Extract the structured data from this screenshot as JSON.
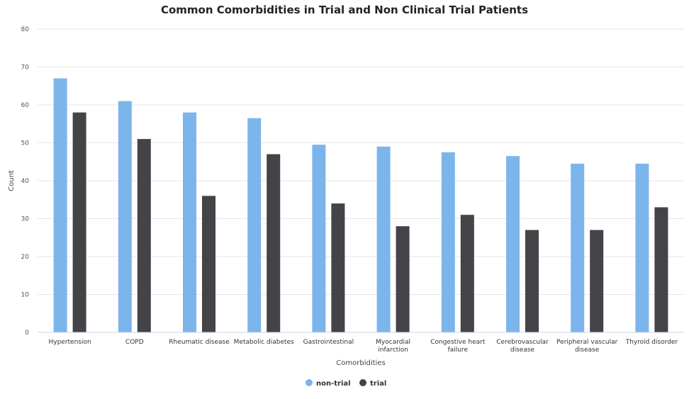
{
  "chart_data": {
    "type": "bar",
    "title": "Common Comorbidities in Trial and Non Clinical Trial Patients",
    "xlabel": "Comorbidities",
    "ylabel": "Count",
    "ylim": [
      0,
      80
    ],
    "yticks": [
      0,
      10,
      20,
      30,
      40,
      50,
      60,
      70,
      80
    ],
    "grid": true,
    "legend": "bottom-center",
    "categories": [
      [
        "Hypertension"
      ],
      [
        "COPD"
      ],
      [
        "Rheumatic disease"
      ],
      [
        "Metabolic diabetes"
      ],
      [
        "Gastrointestinal"
      ],
      [
        "Myocardial",
        "infarction"
      ],
      [
        "Congestive heart",
        "failure"
      ],
      [
        "Cerebrovascular",
        "disease"
      ],
      [
        "Peripheral vascular",
        "disease"
      ],
      [
        "Thyroid disorder"
      ]
    ],
    "series": [
      {
        "name": "non-trial",
        "color": "#7cb5ec",
        "values": [
          67,
          61,
          58,
          56.5,
          49.5,
          49,
          47.5,
          46.5,
          44.5,
          44.5
        ]
      },
      {
        "name": "trial",
        "color": "#434348",
        "values": [
          58,
          51,
          36,
          47,
          34,
          28,
          31,
          27,
          27,
          33
        ]
      }
    ]
  }
}
